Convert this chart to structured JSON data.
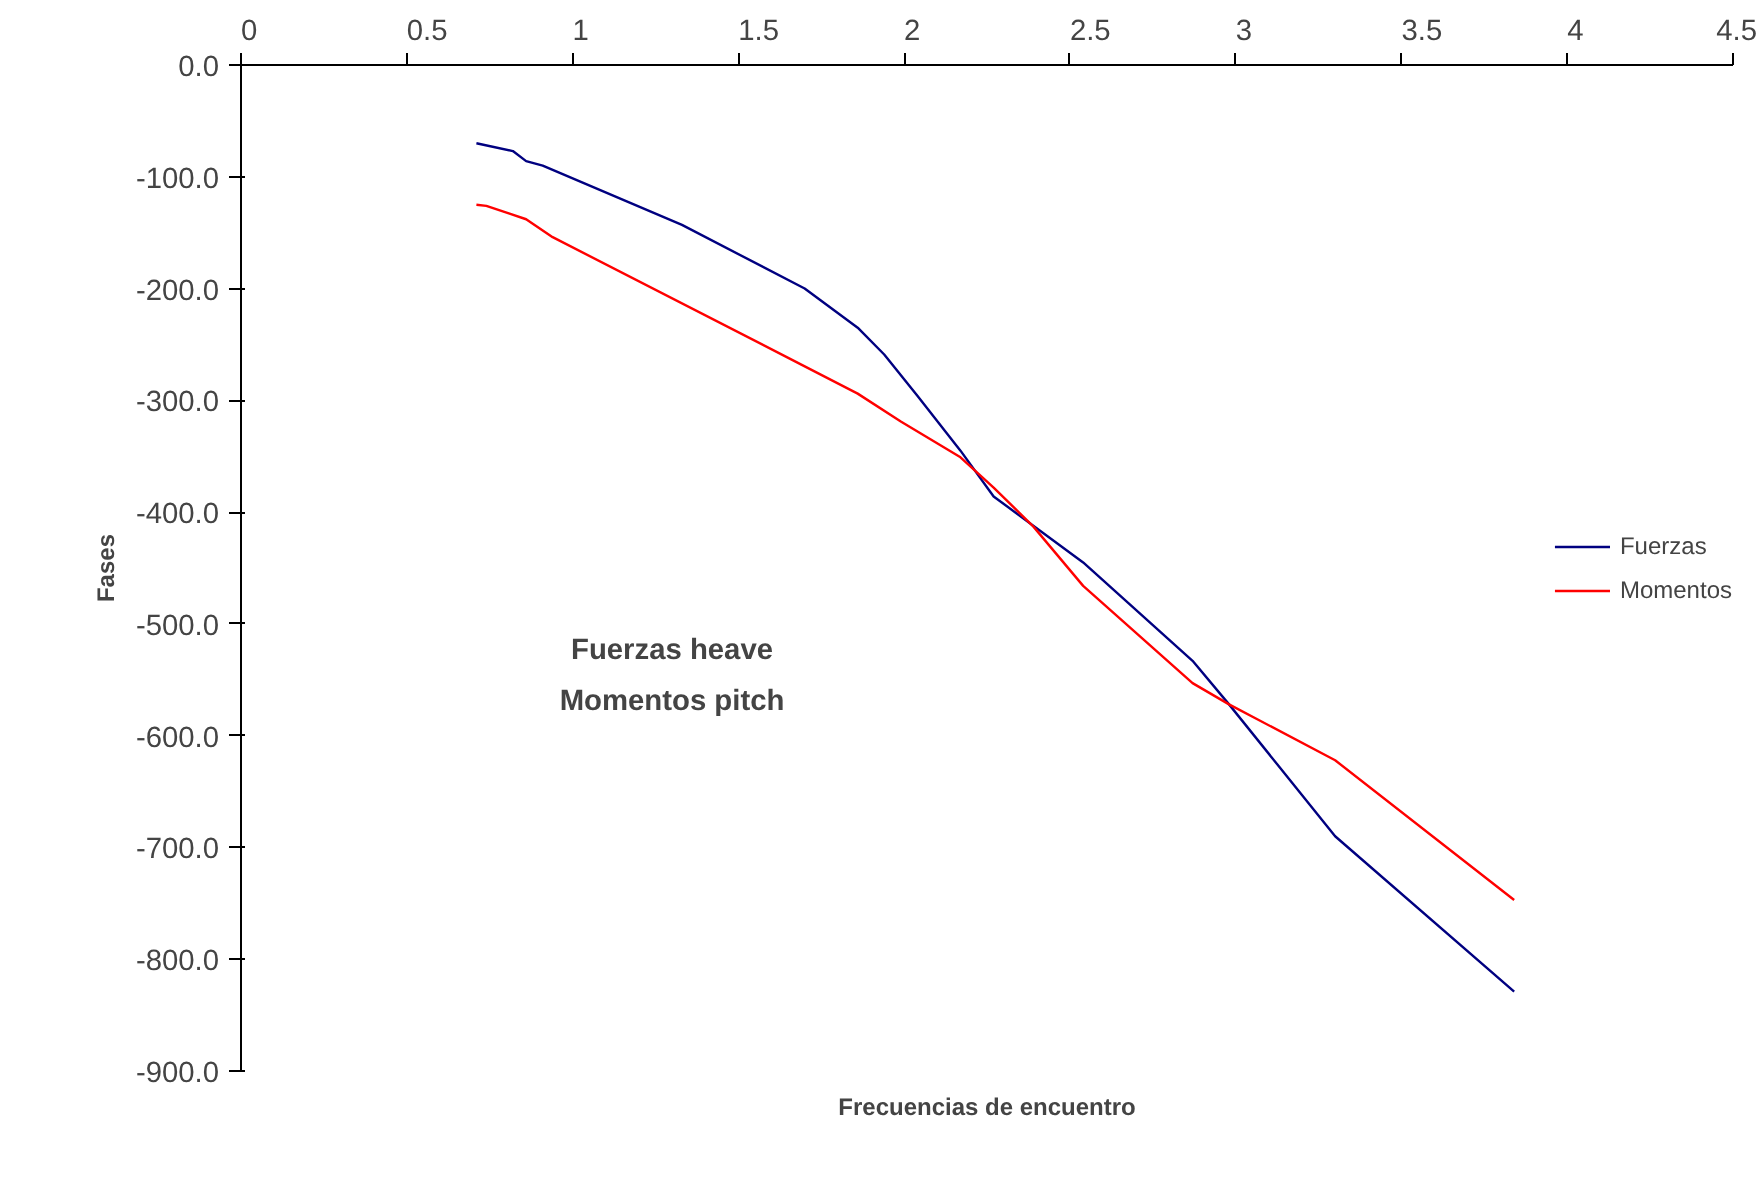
{
  "chart_data": {
    "type": "line",
    "xlabel": "Frecuencias de encuentro",
    "ylabel": "Fases",
    "xlim": [
      0,
      4.5
    ],
    "xticks": [
      0,
      0.5,
      1,
      1.5,
      2,
      2.5,
      3,
      3.5,
      4,
      4.5
    ],
    "ylim": [
      -900,
      0
    ],
    "yticks": [
      {
        "value": 0,
        "label": "0.0"
      },
      {
        "value": -100,
        "label": "-100.0"
      },
      {
        "value": -200,
        "label": "-200.0"
      },
      {
        "value": -300,
        "label": "-300.0"
      },
      {
        "value": -400,
        "label": "-400.0"
      },
      {
        "value": -500,
        "label": "-500.0"
      },
      {
        "value": -600,
        "label": "-600.0"
      },
      {
        "value": -700,
        "label": "-700.0"
      },
      {
        "value": -800,
        "label": "-800.0"
      },
      {
        "value": -900,
        "label": "-900.0"
      }
    ],
    "grid": false,
    "legend": "right",
    "marker": "none",
    "line_style": "solid",
    "annotations": [
      "Fuerzas heave\nMomentos pitch"
    ],
    "series": [
      {
        "name": "Fuerzas",
        "color": "#000080",
        "x": [
          0.71,
          0.82,
          0.86,
          0.91,
          1.33,
          1.7,
          1.86,
          1.94,
          2.04,
          2.17,
          2.27,
          2.54,
          2.87,
          2.98,
          3.3,
          3.84
        ],
        "values": [
          -70,
          -77,
          -86,
          -90,
          -143,
          -200,
          -235,
          -259,
          -296,
          -345,
          -386,
          -445,
          -533,
          -572,
          -690,
          -829
        ]
      },
      {
        "name": "Momentos",
        "color": "#ff0000",
        "x": [
          0.71,
          0.74,
          0.81,
          0.86,
          0.94,
          1.69,
          1.86,
          1.99,
          2.17,
          2.27,
          2.39,
          2.54,
          2.87,
          2.98,
          3.3,
          3.84
        ],
        "values": [
          -125,
          -126,
          -133,
          -138,
          -154,
          -268,
          -294,
          -319,
          -351,
          -378,
          -413,
          -466,
          -553,
          -572,
          -622,
          -747
        ]
      }
    ]
  }
}
